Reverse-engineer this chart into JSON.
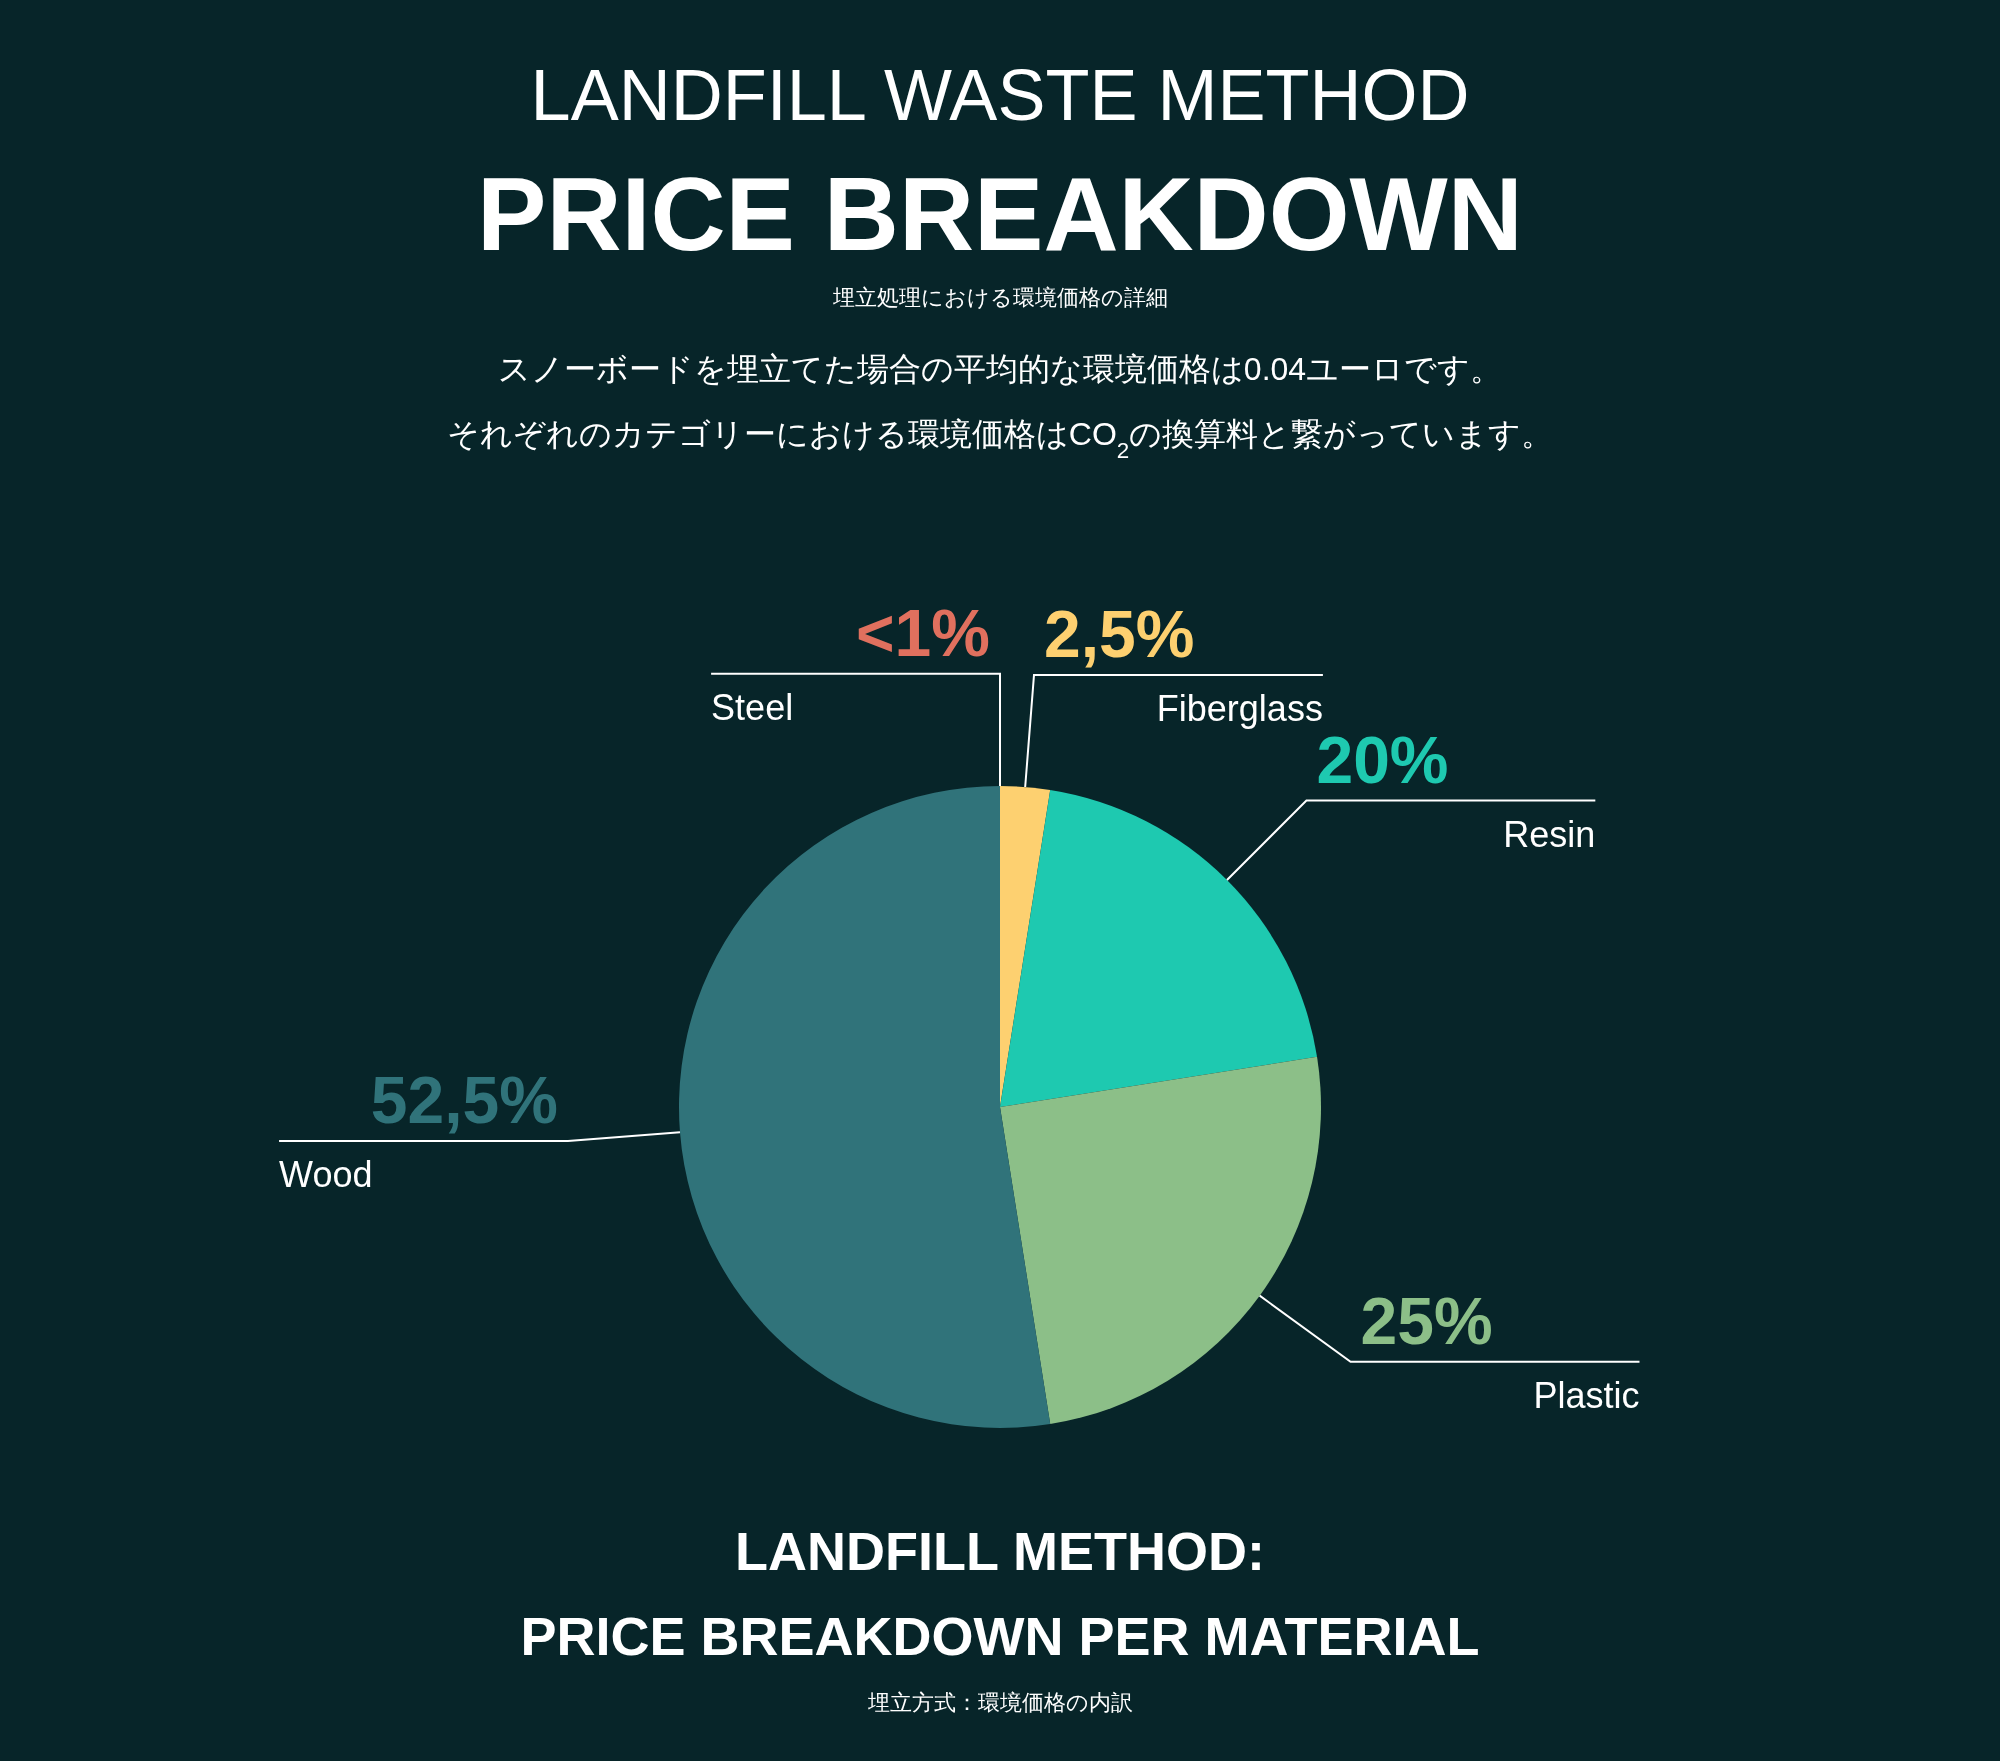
{
  "chart_data": {
    "type": "pie",
    "title": "LANDFILL WASTE METHOD",
    "subtitle": "PRICE BREAKDOWN",
    "categories": [
      "Steel",
      "Fiberglass",
      "Resin",
      "Plastic",
      "Wood"
    ],
    "values": [
      0,
      2.5,
      20,
      25,
      52.5
    ],
    "value_labels": [
      "<1%",
      "2,5%",
      "20%",
      "25%",
      "52,5%"
    ],
    "colors": [
      "#e0705e",
      "#fdd070",
      "#1ec9b0",
      "#8cbf88",
      "#30737a"
    ],
    "annotations": [
      "埋立処理における環境価格の詳細",
      "スノーボードを埋立てた場合の平均的な環境価格は0.04ユーロです。",
      "それぞれのカテゴリーにおける環境価格はCO$_{2}$の換算料と繋がっています。",
      "LANDFILL METHOD:",
      "PRICE BREAKDOWN PER MATERIAL",
      "埋立方式：環境価格の内訳"
    ]
  }
}
